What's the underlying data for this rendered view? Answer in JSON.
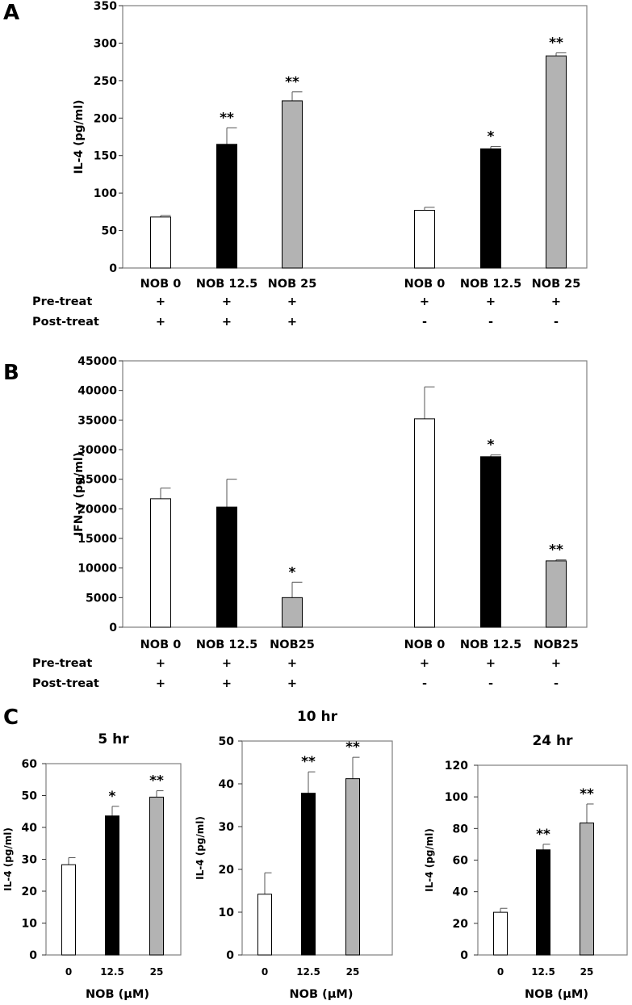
{
  "panels": {
    "A": "A",
    "B": "B",
    "C": "C"
  },
  "row_labels": {
    "pre": "Pre-treat",
    "post": "Post-treat"
  },
  "chart_data": [
    {
      "id": "A",
      "type": "bar",
      "ylabel": "IL-4 (pg/ml)",
      "ylim": [
        0,
        350
      ],
      "yticks": [
        0,
        50,
        100,
        150,
        200,
        250,
        300,
        350
      ],
      "categories": [
        "NOB 0",
        "NOB 12.5",
        "NOB 25",
        "NOB 0",
        "NOB 12.5",
        "NOB 25"
      ],
      "values": [
        68,
        165,
        223,
        77,
        159,
        283
      ],
      "errors": [
        2,
        22,
        12,
        4,
        3,
        4
      ],
      "fills": [
        "#ffffff",
        "#000000",
        "#b3b3b3",
        "#ffffff",
        "#000000",
        "#b3b3b3"
      ],
      "significance": [
        "",
        "**",
        "**",
        "",
        "*",
        "**"
      ],
      "pre_treat": [
        "+",
        "+",
        "+",
        "+",
        "+",
        "+"
      ],
      "post_treat": [
        "+",
        "+",
        "+",
        "-",
        "-",
        "-"
      ]
    },
    {
      "id": "B",
      "type": "bar",
      "ylabel": "IFN-γ (pg/ml)",
      "ylim": [
        0,
        45000
      ],
      "yticks": [
        0,
        5000,
        10000,
        15000,
        20000,
        25000,
        30000,
        35000,
        40000,
        45000
      ],
      "categories": [
        "NOB 0",
        "NOB 12.5",
        "NOB25",
        "NOB 0",
        "NOB 12.5",
        "NOB25"
      ],
      "values": [
        21700,
        20300,
        5000,
        35200,
        28800,
        11200
      ],
      "errors": [
        1800,
        4700,
        2600,
        5400,
        300,
        200
      ],
      "fills": [
        "#ffffff",
        "#000000",
        "#b3b3b3",
        "#ffffff",
        "#000000",
        "#b3b3b3"
      ],
      "significance": [
        "",
        "",
        "*",
        "",
        "*",
        "**"
      ],
      "pre_treat": [
        "+",
        "+",
        "+",
        "+",
        "+",
        "+"
      ],
      "post_treat": [
        "+",
        "+",
        "+",
        "-",
        "-",
        "-"
      ]
    },
    {
      "id": "C1",
      "type": "bar",
      "title": "5 hr",
      "ylabel": "IL-4 (pg/ml)",
      "xlabel": "NOB (μM)",
      "ylim": [
        0,
        60
      ],
      "yticks": [
        0,
        10,
        20,
        30,
        40,
        50,
        60
      ],
      "categories": [
        "0",
        "12.5",
        "25"
      ],
      "values": [
        28.3,
        43.6,
        49.5
      ],
      "errors": [
        2.2,
        3.0,
        2.0
      ],
      "fills": [
        "#ffffff",
        "#000000",
        "#b3b3b3"
      ],
      "significance": [
        "",
        "*",
        "**"
      ]
    },
    {
      "id": "C2",
      "type": "bar",
      "title": "10 hr",
      "ylabel": "IL-4 (pg/ml)",
      "xlabel": "NOB (μM)",
      "ylim": [
        0,
        50
      ],
      "yticks": [
        0,
        10,
        20,
        30,
        40,
        50
      ],
      "categories": [
        "0",
        "12.5",
        "25"
      ],
      "values": [
        14.2,
        37.8,
        41.2
      ],
      "errors": [
        5.0,
        5.0,
        5.0
      ],
      "fills": [
        "#ffffff",
        "#000000",
        "#b3b3b3"
      ],
      "significance": [
        "",
        "**",
        "**"
      ]
    },
    {
      "id": "C3",
      "type": "bar",
      "title": "24 hr",
      "ylabel": "IL-4 (pg/ml)",
      "xlabel": "NOB (μM)",
      "ylim": [
        0,
        120
      ],
      "yticks": [
        0,
        20,
        40,
        60,
        80,
        100,
        120
      ],
      "categories": [
        "0",
        "12.5",
        "25"
      ],
      "values": [
        27,
        66.5,
        83.5
      ],
      "errors": [
        2.5,
        3.5,
        12
      ],
      "fills": [
        "#ffffff",
        "#000000",
        "#b3b3b3"
      ],
      "significance": [
        "",
        "**",
        "**"
      ]
    }
  ]
}
